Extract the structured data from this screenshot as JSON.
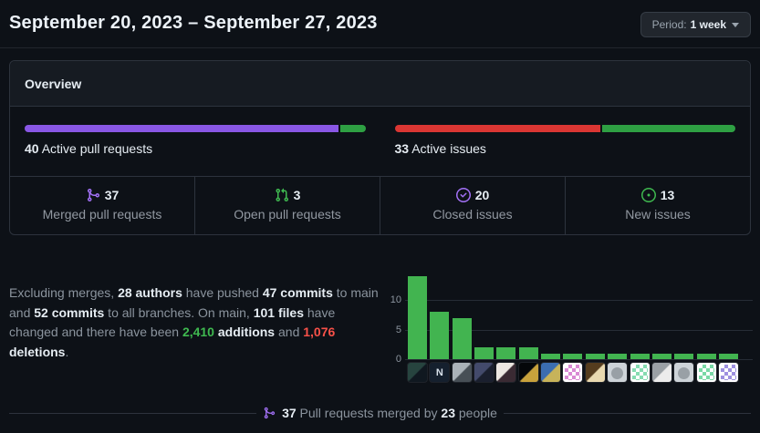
{
  "header": {
    "title": "September 20, 2023 – September 27, 2023",
    "period": {
      "label": "Period:",
      "value": "1 week"
    }
  },
  "overview": {
    "title": "Overview",
    "pull_requests": {
      "count": "40",
      "label": "Active pull requests",
      "segments": [
        {
          "name": "merged",
          "color": "#8957e5",
          "percent": 92.5
        },
        {
          "name": "open",
          "color": "#2ea043",
          "percent": 7.5
        }
      ]
    },
    "issues": {
      "count": "33",
      "label": "Active issues",
      "segments": [
        {
          "name": "closed",
          "color": "#da3633",
          "percent": 60.6
        },
        {
          "name": "new",
          "color": "#2ea043",
          "percent": 39.4
        }
      ]
    },
    "stats": [
      {
        "icon": "git-merge",
        "icon_color": "#a371f7",
        "value": "37",
        "label": "Merged pull requests"
      },
      {
        "icon": "git-pull-request",
        "icon_color": "#3fb950",
        "value": "3",
        "label": "Open pull requests"
      },
      {
        "icon": "issue-closed",
        "icon_color": "#a371f7",
        "value": "20",
        "label": "Closed issues"
      },
      {
        "icon": "issue-opened",
        "icon_color": "#3fb950",
        "value": "13",
        "label": "New issues"
      }
    ]
  },
  "summary": {
    "segments": [
      {
        "t": "Excluding merges, ",
        "s": "muted"
      },
      {
        "t": "28 authors",
        "s": "strong"
      },
      {
        "t": " have pushed ",
        "s": "muted"
      },
      {
        "t": "47 commits",
        "s": "strong"
      },
      {
        "t": " to main and ",
        "s": "muted"
      },
      {
        "t": "52 commits",
        "s": "strong"
      },
      {
        "t": " to all branches. On main, ",
        "s": "muted"
      },
      {
        "t": "101 files",
        "s": "strong"
      },
      {
        "t": " have changed and there have been ",
        "s": "muted"
      },
      {
        "t": "2,410",
        "s": "add"
      },
      {
        "t": " ",
        "s": "muted"
      },
      {
        "t": "additions",
        "s": "strong"
      },
      {
        "t": " and ",
        "s": "muted"
      },
      {
        "t": "1,076",
        "s": "del"
      },
      {
        "t": " ",
        "s": "muted"
      },
      {
        "t": "deletions",
        "s": "strong"
      },
      {
        "t": ".",
        "s": "muted"
      }
    ]
  },
  "chart_data": {
    "type": "bar",
    "description": "Commits per top author during the period; x-axis labels are author avatars",
    "values": [
      14,
      8,
      7,
      2,
      2,
      2,
      1,
      1,
      1,
      1,
      1,
      1,
      1,
      1,
      1
    ],
    "yticks": [
      0,
      5,
      10
    ],
    "ylim": [
      0,
      15
    ],
    "grid": true,
    "bar_color": "#42b450",
    "avatars": [
      {
        "kind": "photo",
        "c1": "#27443f",
        "c2": "#101820"
      },
      {
        "kind": "logo",
        "c1": "#15202e",
        "c2": "#d7e0ea",
        "letter": "N"
      },
      {
        "kind": "photo",
        "c1": "#aab2b8",
        "c2": "#474f56"
      },
      {
        "kind": "photo",
        "c1": "#434a6b",
        "c2": "#1a1f2e"
      },
      {
        "kind": "photo",
        "c1": "#ece7e2",
        "c2": "#3a2a33"
      },
      {
        "kind": "photo",
        "c1": "#05070a",
        "c2": "#c8a23c"
      },
      {
        "kind": "photo",
        "c1": "#3b6db0",
        "c2": "#c7b35a"
      },
      {
        "kind": "identicon",
        "c1": "#ffffff",
        "c2": "#d98ad4"
      },
      {
        "kind": "photo",
        "c1": "#553c1e",
        "c2": "#e9d9b0"
      },
      {
        "kind": "default",
        "c1": "#cdd3d8",
        "c2": "#99a0a6"
      },
      {
        "kind": "identicon",
        "c1": "#ffffff",
        "c2": "#86dcb1"
      },
      {
        "kind": "photo",
        "c1": "#9aa0a5",
        "c2": "#ececec"
      },
      {
        "kind": "default",
        "c1": "#cdd3d8",
        "c2": "#99a0a6"
      },
      {
        "kind": "identicon",
        "c1": "#ffffff",
        "c2": "#79d9a6"
      },
      {
        "kind": "identicon",
        "c1": "#ffffff",
        "c2": "#9e90e0"
      }
    ]
  },
  "footer": {
    "icon": "git-merge",
    "icon_color": "#a371f7",
    "segments": [
      {
        "t": "37",
        "s": "strong"
      },
      {
        "t": " Pull requests merged by ",
        "s": "muted"
      },
      {
        "t": "23",
        "s": "strong"
      },
      {
        "t": " people",
        "s": "muted"
      }
    ]
  }
}
